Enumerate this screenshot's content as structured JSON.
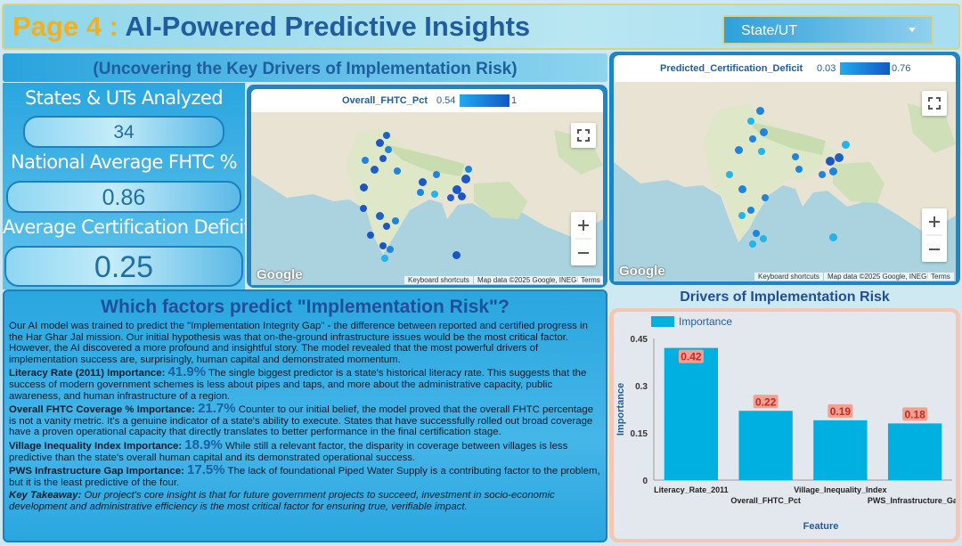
{
  "header": {
    "page_label": "Page 4 :",
    "title": "AI-Powered Predictive Insights",
    "state_filter": "State/UT"
  },
  "subtitle": "(Uncovering the Key Drivers of Implementation Risk)",
  "kpis": [
    {
      "label": "States & UTs Analyzed",
      "value": "34"
    },
    {
      "label": "National Average FHTC %",
      "value": "0.86"
    },
    {
      "label": "Average Certification Deficit",
      "value": "0.25"
    }
  ],
  "map_left": {
    "legend_title": "Overall_FHTC_Pct",
    "legend_min": "0.54",
    "legend_max": "1",
    "google": "Google",
    "shortcuts": "Keyboard shortcuts",
    "map_data": "Map data ©2025 Google, INEGI",
    "terms": "Terms"
  },
  "map_right": {
    "legend_title": "Predicted_Certification_Deficit",
    "legend_min": "0.03",
    "legend_max": "0.76",
    "google": "Google",
    "shortcuts": "Keyboard shortcuts",
    "map_data": "Map data ©2025 Google, INEGI",
    "terms": "Terms"
  },
  "colors": {
    "accent": "#2aa6df",
    "title_blue": "#1f5d9e",
    "page_gold": "#f2b01e",
    "bar": "#00b0e0",
    "bar_label_bg": "#f4a090",
    "bar_label_fg": "#c0282a"
  },
  "insights": {
    "title": "Which factors predict \"Implementation Risk\"?",
    "intro": "Our AI model was trained to predict the \"Implementation Integrity Gap\" - the difference between reported and certified progress in the Har Ghar Jal mission. Our initial hypothesis was that on-the-ground infrastructure issues would be the most critical factor. However, the AI discovered a more profound and insightful story. The model revealed that the most powerful drivers of implementation success are, surprisingly, human capital and demonstrated momentum.",
    "items": [
      {
        "head": "Literacy Rate (2011) Importance:",
        "pct": "41.9%",
        "text": "The single biggest predictor is a state's historical literacy rate. This suggests that the success of modern government schemes is less about pipes and taps, and more about the administrative capacity, public awareness, and human infrastructure of a region."
      },
      {
        "head": "Overall FHTC Coverage % Importance:",
        "pct": "21.7%",
        "text": "Counter to our initial belief, the model proved that the overall FHTC percentage is not a vanity metric. It's a genuine indicator of a state's ability to execute. States that have successfully rolled out broad coverage have a proven operational capacity that directly translates to better performance in the final certification stage."
      },
      {
        "head": "Village Inequality Index Importance:",
        "pct": "18.9%",
        "text": "While still a relevant factor, the disparity in coverage between villages is less predictive than the state's overall human capital and its demonstrated operational success."
      },
      {
        "head": "PWS Infrastructure Gap Importance:",
        "pct": "17.5%",
        "text": "The lack of foundational Piped Water Supply is a contributing factor to the problem, but it is the least predictive of the four."
      }
    ],
    "takeaway_head": "Key Takeaway:",
    "takeaway": "Our project's core insight is that for future government projects to succeed, investment in socio-economic development and administrative efficiency is the most critical factor for ensuring true, verifiable impact."
  },
  "chart_data": {
    "type": "bar",
    "title": "Drivers of Implementation Risk",
    "categories": [
      "Literacy_Rate_2011",
      "Overall_FHTC_Pct",
      "Village_Inequality_Index",
      "PWS_Infrastructure_Gap"
    ],
    "series": [
      {
        "name": "Importance",
        "values": [
          0.42,
          0.22,
          0.19,
          0.18
        ]
      }
    ],
    "data_labels": [
      "0.42",
      "0.22",
      "0.19",
      "0.18"
    ],
    "xlabel": "Feature",
    "ylabel": "Importance",
    "ylim": [
      0,
      0.45
    ],
    "yticks": [
      0,
      0.15,
      0.3,
      0.45
    ],
    "ytick_labels": [
      "0",
      "0.15",
      "0.3",
      "0.45"
    ],
    "legend": "top-left",
    "grid": false
  }
}
